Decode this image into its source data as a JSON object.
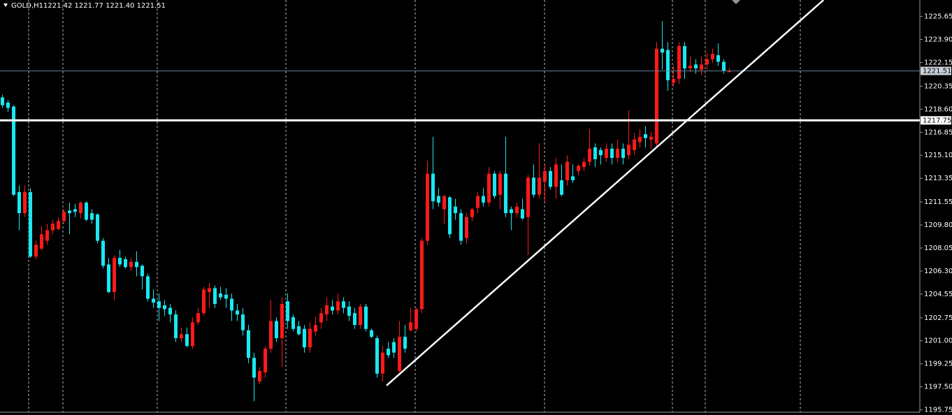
{
  "chart_data": {
    "type": "candlestick",
    "title": "GOLD,H1",
    "quote": "1221.42 1221.77 1221.40 1221.51",
    "up_color": "#ff1a1a",
    "down_color": "#19e8f2",
    "ylim": [
      1195.57,
      1226.9
    ],
    "yticks": [
      1225.65,
      {
        "value": 1223.9,
        "label": "1223.90"
      },
      1222.15,
      1220.35,
      {
        "value": 1218.6,
        "label": "1218.60"
      },
      {
        "value": 1216.85,
        "label": "1216.85"
      },
      {
        "value": 1215.1,
        "label": "1215.10"
      },
      1213.35,
      1211.55,
      {
        "value": 1209.8,
        "label": "1209.80"
      },
      1208.05,
      {
        "value": 1206.3,
        "label": "1206.30"
      },
      1204.55,
      1202.75,
      {
        "value": 1201.0,
        "label": "1201.00"
      },
      1199.25,
      {
        "value": 1197.5,
        "label": "1197.50"
      },
      1195.75
    ],
    "open": [
      1219.5,
      1219.1,
      1218.8,
      1212.3,
      1210.7,
      1212.3,
      1207.4,
      1208.0,
      1208.6,
      1209.4,
      1209.5,
      1210.1,
      1210.9,
      1211.0,
      1210.7,
      1211.5,
      1210.7,
      1210.6,
      1208.6,
      1206.8,
      1204.7,
      1207.3,
      1207.2,
      1206.6,
      1207.0,
      1206.7,
      1205.9,
      1204.2,
      1204.0,
      1203.7,
      1203.5,
      1203.0,
      1201.2,
      1201.5,
      1200.6,
      1202.4,
      1203.1,
      1204.7,
      1205.0,
      1204.6,
      1204.5,
      1204.2,
      1203.3,
      1203.0,
      1201.8,
      1199.7,
      1197.9,
      1198.6,
      1200.4,
      1202.5,
      1201.2,
      1204.0,
      1202.8,
      1202.1,
      1201.9,
      1200.5,
      1201.7,
      1202.4,
      1203.0,
      1203.6,
      1203.3,
      1204.0,
      1203.6,
      1203.1,
      1202.2,
      1203.6,
      1201.8,
      1201.2,
      1198.5,
      1200.4,
      1200.9,
      1198.7,
      1201.3,
      1201.8,
      1201.9,
      1203.4,
      1208.6,
      1213.7,
      1212.0,
      1211.0,
      1211.9,
      1211.2,
      1210.7,
      1208.8,
      1210.4,
      1211.1,
      1212.0,
      1211.5,
      1213.7,
      1212.1,
      1213.7,
      1211.0,
      1210.7,
      1211.0,
      1210.4,
      1213.4,
      1212.1,
      1213.1,
      1213.9,
      1212.7,
      1213.2,
      1213.2,
      1213.5,
      1213.9,
      1214.2,
      1214.6,
      1215.7,
      1215.5,
      1214.9,
      1215.6,
      1214.9,
      1215.6,
      1215.1,
      1215.5,
      1216.1,
      1216.7,
      1216.3,
      1216.0,
      1223.2,
      1223.1,
      1220.6,
      1220.9,
      1223.4,
      1221.7,
      1222.0,
      1221.6,
      1222.0,
      1222.4,
      1222.7,
      1222.2,
      1221.42
    ],
    "high": [
      1219.7,
      1219.3,
      1218.9,
      1212.8,
      1212.8,
      1212.6,
      1208.6,
      1209.7,
      1209.9,
      1210.2,
      1210.4,
      1211.0,
      1211.5,
      1211.4,
      1211.6,
      1211.6,
      1211.0,
      1210.7,
      1208.8,
      1207.3,
      1207.5,
      1207.9,
      1207.4,
      1207.3,
      1207.8,
      1206.8,
      1206.1,
      1204.9,
      1204.6,
      1204.1,
      1203.8,
      1203.3,
      1202.0,
      1202.0,
      1202.8,
      1203.5,
      1205.1,
      1205.4,
      1205.2,
      1205.1,
      1205.0,
      1204.6,
      1203.8,
      1203.5,
      1202.2,
      1200.1,
      1199.0,
      1200.6,
      1204.1,
      1202.8,
      1204.3,
      1204.6,
      1203.0,
      1202.5,
      1202.2,
      1202.4,
      1202.8,
      1203.5,
      1204.3,
      1204.1,
      1204.6,
      1204.3,
      1204.0,
      1203.5,
      1203.8,
      1203.8,
      1201.9,
      1201.4,
      1200.6,
      1200.9,
      1201.2,
      1202.5,
      1202.2,
      1203.5,
      1203.5,
      1208.8,
      1214.7,
      1216.5,
      1212.6,
      1212.1,
      1212.0,
      1211.8,
      1211.0,
      1210.7,
      1211.1,
      1212.3,
      1212.6,
      1214.2,
      1213.9,
      1213.9,
      1216.5,
      1211.2,
      1211.5,
      1211.8,
      1213.6,
      1214.4,
      1216.0,
      1214.4,
      1214.2,
      1214.9,
      1214.4,
      1215.1,
      1214.4,
      1214.4,
      1214.9,
      1217.1,
      1216.0,
      1215.7,
      1216.0,
      1216.0,
      1216.3,
      1216.0,
      1218.5,
      1216.8,
      1217.1,
      1217.3,
      1216.9,
      1223.7,
      1225.3,
      1223.7,
      1221.9,
      1223.7,
      1223.7,
      1222.6,
      1222.4,
      1222.6,
      1222.9,
      1223.2,
      1223.6,
      1222.4,
      1221.77
    ],
    "low": [
      1218.7,
      1218.4,
      1212.0,
      1209.4,
      1210.4,
      1207.3,
      1207.2,
      1207.9,
      1208.3,
      1209.1,
      1209.4,
      1209.9,
      1209.1,
      1210.4,
      1210.3,
      1210.1,
      1209.9,
      1208.4,
      1206.5,
      1204.6,
      1204.1,
      1206.6,
      1206.5,
      1206.3,
      1205.9,
      1204.9,
      1204.0,
      1203.5,
      1202.5,
      1202.9,
      1202.4,
      1200.9,
      1200.9,
      1200.5,
      1200.4,
      1202.2,
      1202.9,
      1203.5,
      1203.5,
      1204.1,
      1203.5,
      1202.5,
      1202.5,
      1201.4,
      1199.3,
      1196.4,
      1197.7,
      1198.2,
      1200.1,
      1200.9,
      1199.0,
      1201.9,
      1201.7,
      1201.4,
      1200.1,
      1200.1,
      1201.4,
      1201.9,
      1202.5,
      1203.0,
      1203.0,
      1203.1,
      1202.5,
      1201.9,
      1201.9,
      1201.7,
      1201.2,
      1198.2,
      1197.9,
      1199.7,
      1199.7,
      1198.6,
      1200.1,
      1201.7,
      1201.7,
      1203.1,
      1208.3,
      1211.0,
      1211.2,
      1209.9,
      1208.8,
      1210.2,
      1208.3,
      1208.4,
      1210.1,
      1210.7,
      1211.2,
      1211.2,
      1211.8,
      1211.0,
      1210.4,
      1209.4,
      1210.4,
      1210.2,
      1207.5,
      1211.9,
      1211.8,
      1211.5,
      1212.5,
      1211.8,
      1212.0,
      1212.8,
      1213.0,
      1213.6,
      1213.9,
      1214.3,
      1214.2,
      1214.4,
      1214.6,
      1214.4,
      1214.6,
      1214.4,
      1214.8,
      1215.1,
      1215.7,
      1215.7,
      1215.6,
      1215.7,
      1221.6,
      1220.0,
      1220.3,
      1220.5,
      1220.9,
      1221.4,
      1221.3,
      1221.2,
      1221.6,
      1222.1,
      1221.9,
      1221.3,
      1221.4
    ],
    "close": [
      1218.9,
      1218.7,
      1212.1,
      1210.7,
      1212.3,
      1207.4,
      1208.3,
      1209.1,
      1209.4,
      1209.9,
      1210.1,
      1210.8,
      1210.7,
      1210.8,
      1211.5,
      1210.2,
      1210.2,
      1208.6,
      1206.7,
      1204.7,
      1207.3,
      1206.8,
      1206.6,
      1207.0,
      1206.6,
      1205.9,
      1204.2,
      1203.9,
      1203.5,
      1203.4,
      1203.0,
      1201.2,
      1201.5,
      1200.6,
      1202.4,
      1203.1,
      1204.9,
      1205.0,
      1203.8,
      1204.3,
      1204.2,
      1203.3,
      1203.0,
      1201.8,
      1199.7,
      1198.2,
      1198.7,
      1200.4,
      1202.5,
      1201.2,
      1203.8,
      1202.5,
      1201.9,
      1201.5,
      1200.5,
      1201.9,
      1202.2,
      1203.1,
      1203.7,
      1203.3,
      1204.0,
      1203.5,
      1202.9,
      1202.2,
      1203.6,
      1201.9,
      1201.3,
      1198.5,
      1200.1,
      1199.9,
      1200.1,
      1201.3,
      1200.4,
      1202.4,
      1203.4,
      1208.6,
      1213.7,
      1211.6,
      1211.5,
      1212.0,
      1209.1,
      1210.7,
      1208.6,
      1210.4,
      1211.0,
      1212.0,
      1211.5,
      1213.7,
      1212.0,
      1213.7,
      1210.7,
      1210.7,
      1211.2,
      1210.3,
      1213.4,
      1212.1,
      1213.4,
      1213.9,
      1212.7,
      1214.4,
      1212.1,
      1214.6,
      1213.2,
      1214.3,
      1214.6,
      1215.6,
      1214.8,
      1215.1,
      1215.6,
      1214.9,
      1215.6,
      1214.9,
      1215.9,
      1216.3,
      1216.5,
      1216.4,
      1216.5,
      1223.2,
      1222.9,
      1220.8,
      1220.9,
      1223.4,
      1221.7,
      1221.9,
      1221.7,
      1222.0,
      1222.4,
      1222.8,
      1222.2,
      1221.5,
      1221.51
    ],
    "hlines": [
      {
        "value": 1221.51,
        "color": "#5f7f93",
        "label_bg": "#c8d0d8",
        "width": 1
      },
      {
        "value": 1217.75,
        "color": "#ffffff",
        "label_bg": "#ffffff",
        "width": 3
      }
    ],
    "trendline": {
      "x": [
        68.75,
        146.9
      ],
      "y": [
        1197.6,
        1226.9
      ],
      "color": "#ffffff"
    }
  }
}
